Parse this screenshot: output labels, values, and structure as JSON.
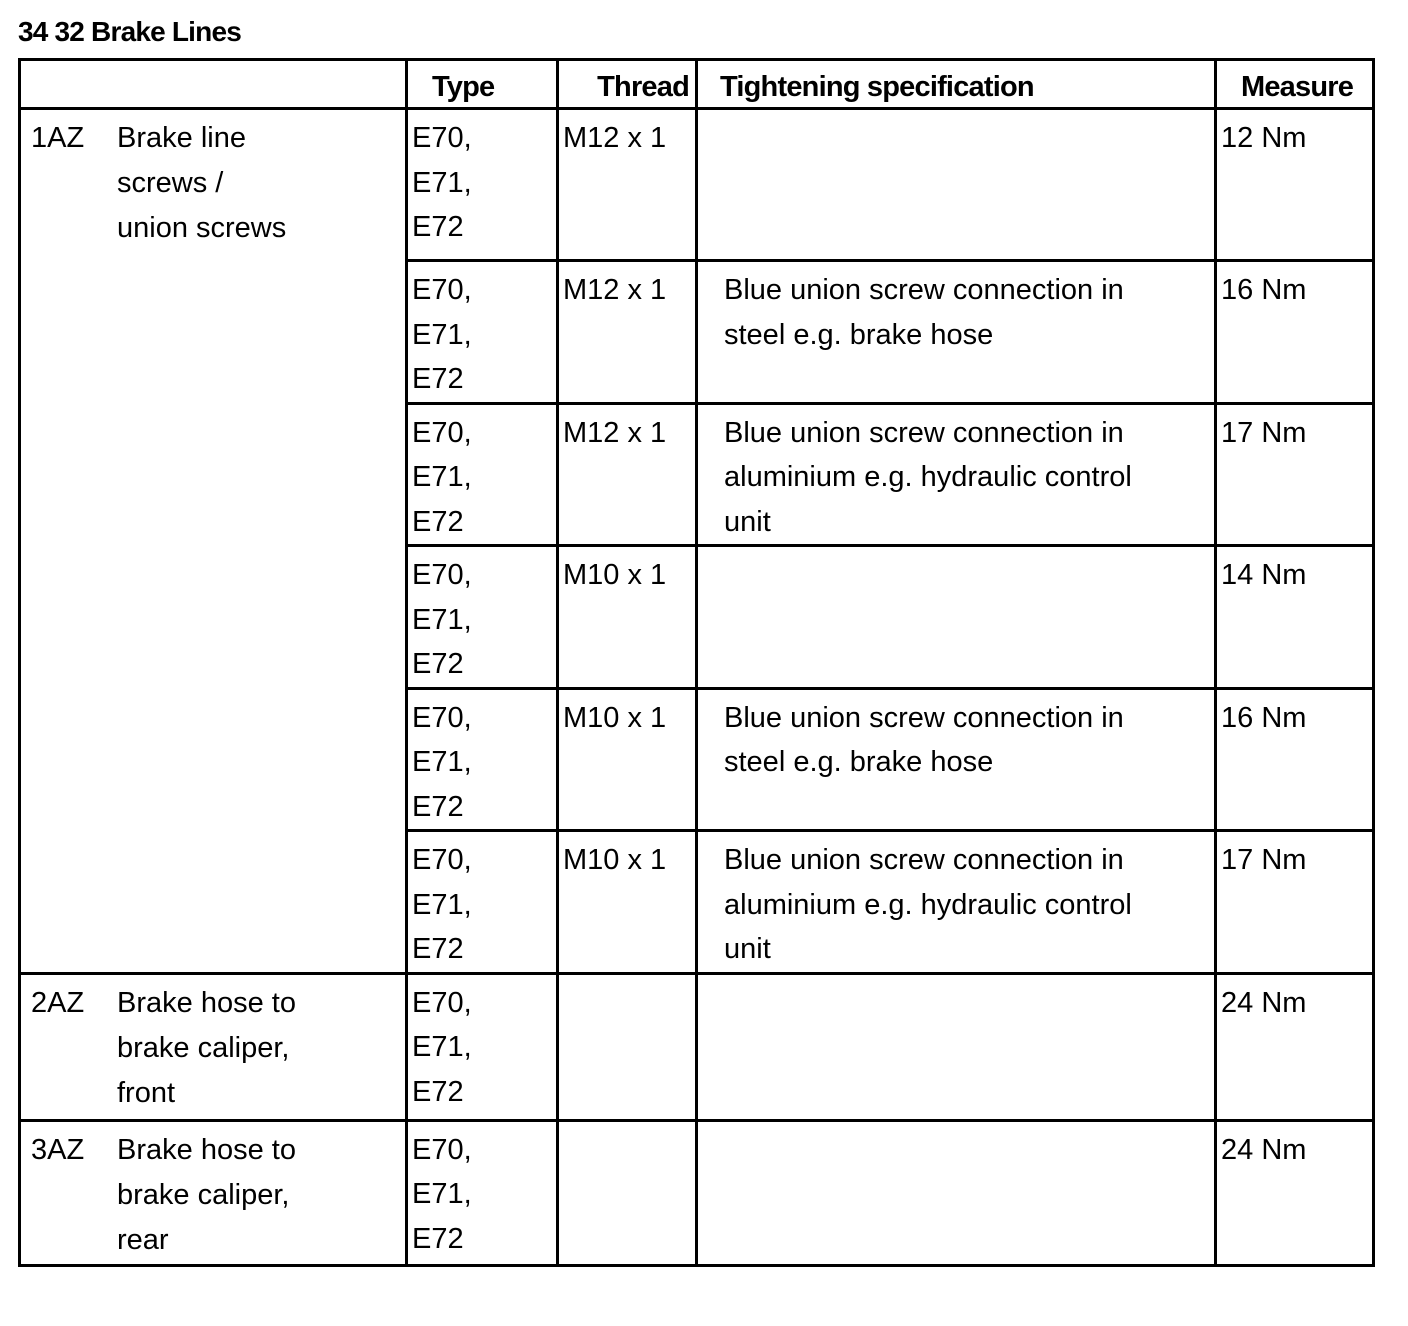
{
  "title": "34 32 Brake Lines",
  "headers": {
    "blank": "",
    "type": "Type",
    "thread": "Thread",
    "spec": "Tightening specification",
    "measure": "Measure"
  },
  "groups": [
    {
      "code": "1AZ",
      "desc": [
        "Brake line",
        "screws /",
        "union screws"
      ],
      "rows": [
        {
          "type": [
            "E70,",
            "E71,",
            "E72"
          ],
          "thread": "M12 x 1",
          "spec": [],
          "measure": "12 Nm"
        },
        {
          "type": [
            "E70,",
            "E71,",
            "E72"
          ],
          "thread": "M12 x 1",
          "spec": [
            "Blue union screw connection in",
            "steel e.g. brake hose"
          ],
          "measure": "16 Nm"
        },
        {
          "type": [
            "E70,",
            "E71,",
            "E72"
          ],
          "thread": "M12 x 1",
          "spec": [
            "Blue union screw connection in",
            "aluminium e.g. hydraulic control",
            "unit"
          ],
          "measure": "17 Nm"
        },
        {
          "type": [
            "E70,",
            "E71,",
            "E72"
          ],
          "thread": "M10 x 1",
          "spec": [],
          "measure": "14 Nm"
        },
        {
          "type": [
            "E70,",
            "E71,",
            "E72"
          ],
          "thread": "M10 x 1",
          "spec": [
            "Blue union screw connection in",
            "steel e.g. brake hose"
          ],
          "measure": "16 Nm"
        },
        {
          "type": [
            "E70,",
            "E71,",
            "E72"
          ],
          "thread": "M10 x 1",
          "spec": [
            "Blue union screw connection in",
            "aluminium e.g. hydraulic control",
            "unit"
          ],
          "measure": "17 Nm"
        }
      ]
    },
    {
      "code": "2AZ",
      "desc": [
        "Brake hose to",
        "brake caliper,",
        "front"
      ],
      "rows": [
        {
          "type": [
            "E70,",
            "E71,",
            "E72"
          ],
          "thread": "",
          "spec": [],
          "measure": "24 Nm"
        }
      ]
    },
    {
      "code": "3AZ",
      "desc": [
        "Brake hose to",
        "brake caliper,",
        "rear"
      ],
      "rows": [
        {
          "type": [
            "E70,",
            "E71,",
            "E72"
          ],
          "thread": "",
          "spec": [],
          "measure": "24 Nm"
        }
      ]
    }
  ]
}
